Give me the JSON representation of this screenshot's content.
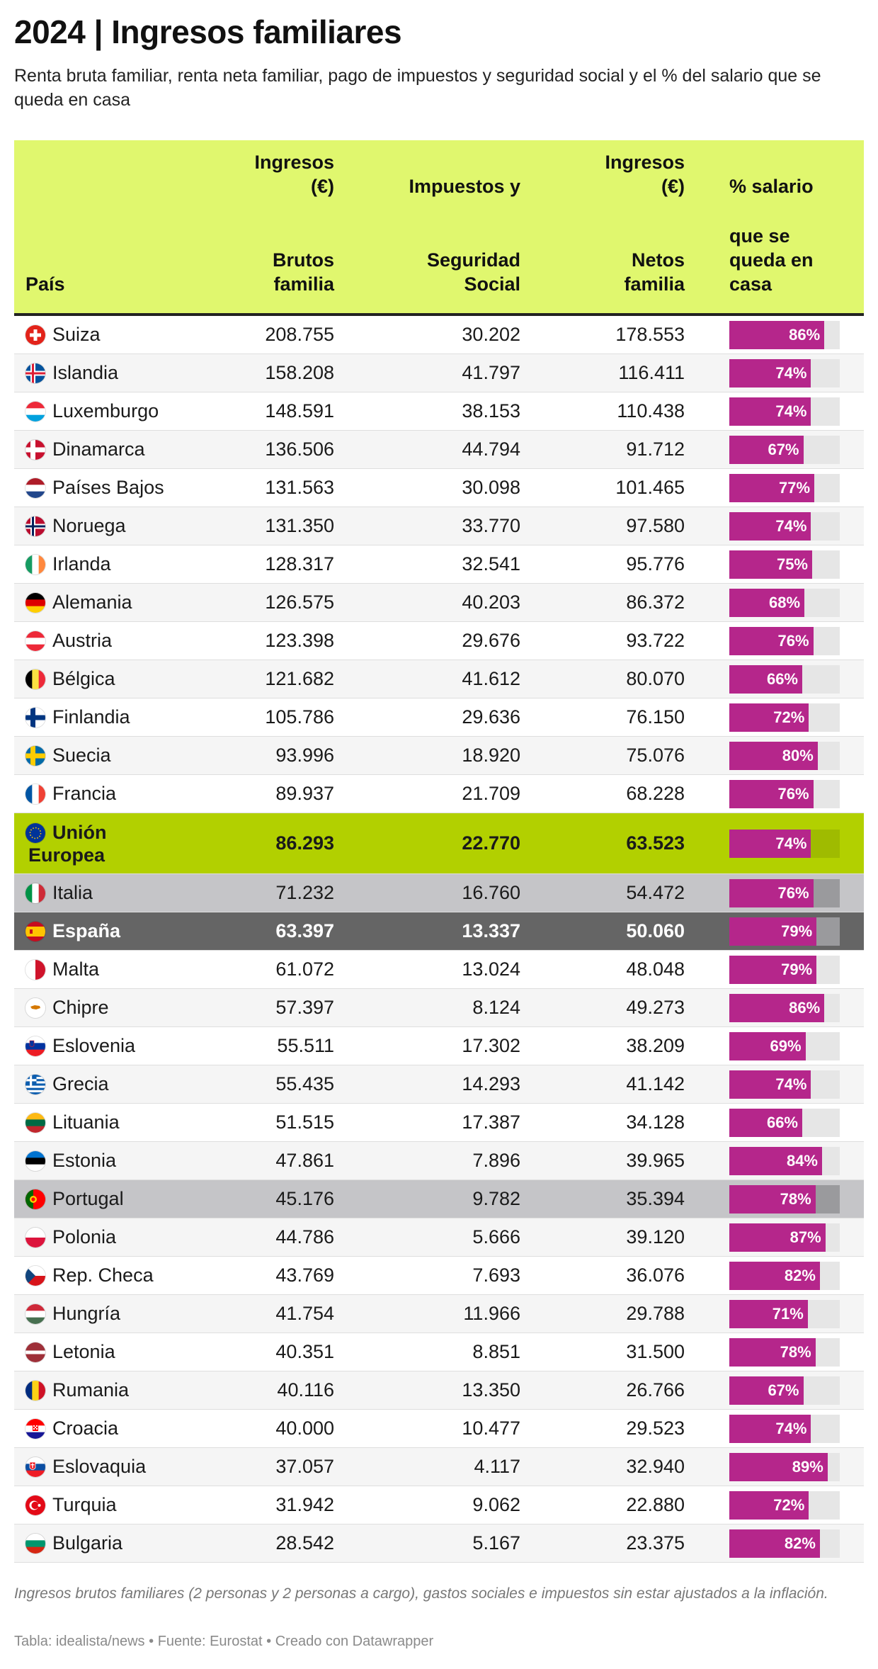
{
  "header": {
    "title": "2024 | Ingresos familiares",
    "subtitle": "Renta bruta familiar, renta neta familiar, pago de impuestos y seguridad social y el % del salario que se queda en casa"
  },
  "columns": {
    "country": "País",
    "gross_top": [
      "Ingresos",
      "(€)"
    ],
    "gross_bottom": [
      "Brutos",
      "familia"
    ],
    "tax_top": [
      "Impuestos y"
    ],
    "tax_bottom": [
      "Seguridad",
      "Social"
    ],
    "net_top": [
      "Ingresos",
      "(€)"
    ],
    "net_bottom": [
      "Netos",
      "familia"
    ],
    "pct_top": [
      "% salario"
    ],
    "pct_bottom": [
      "que se",
      "queda en",
      "casa"
    ]
  },
  "chart_data": {
    "type": "table",
    "columns": [
      "País",
      "Ingresos (€) Brutos familia",
      "Impuestos y Seguridad Social",
      "Ingresos (€) Netos familia",
      "% salario que se queda en casa"
    ],
    "bar_max_percent": 100,
    "rows": [
      {
        "country": "Suiza",
        "flag": "ch",
        "gross": "208.755",
        "tax": "30.202",
        "net": "178.553",
        "pct": 86,
        "pct_label": "86%"
      },
      {
        "country": "Islandia",
        "flag": "is",
        "gross": "158.208",
        "tax": "41.797",
        "net": "116.411",
        "pct": 74,
        "pct_label": "74%"
      },
      {
        "country": "Luxemburgo",
        "flag": "lu",
        "gross": "148.591",
        "tax": "38.153",
        "net": "110.438",
        "pct": 74,
        "pct_label": "74%"
      },
      {
        "country": "Dinamarca",
        "flag": "dk",
        "gross": "136.506",
        "tax": "44.794",
        "net": "91.712",
        "pct": 67,
        "pct_label": "67%"
      },
      {
        "country": "Países Bajos",
        "flag": "nl",
        "gross": "131.563",
        "tax": "30.098",
        "net": "101.465",
        "pct": 77,
        "pct_label": "77%"
      },
      {
        "country": "Noruega",
        "flag": "no",
        "gross": "131.350",
        "tax": "33.770",
        "net": "97.580",
        "pct": 74,
        "pct_label": "74%"
      },
      {
        "country": "Irlanda",
        "flag": "ie",
        "gross": "128.317",
        "tax": "32.541",
        "net": "95.776",
        "pct": 75,
        "pct_label": "75%"
      },
      {
        "country": "Alemania",
        "flag": "de",
        "gross": "126.575",
        "tax": "40.203",
        "net": "86.372",
        "pct": 68,
        "pct_label": "68%"
      },
      {
        "country": "Austria",
        "flag": "at",
        "gross": "123.398",
        "tax": "29.676",
        "net": "93.722",
        "pct": 76,
        "pct_label": "76%"
      },
      {
        "country": "Bélgica",
        "flag": "be",
        "gross": "121.682",
        "tax": "41.612",
        "net": "80.070",
        "pct": 66,
        "pct_label": "66%"
      },
      {
        "country": "Finlandia",
        "flag": "fi",
        "gross": "105.786",
        "tax": "29.636",
        "net": "76.150",
        "pct": 72,
        "pct_label": "72%"
      },
      {
        "country": "Suecia",
        "flag": "se",
        "gross": "93.996",
        "tax": "18.920",
        "net": "75.076",
        "pct": 80,
        "pct_label": "80%"
      },
      {
        "country": "Francia",
        "flag": "fr",
        "gross": "89.937",
        "tax": "21.709",
        "net": "68.228",
        "pct": 76,
        "pct_label": "76%"
      },
      {
        "country": "Unión Europea",
        "country_lines": [
          "Unión",
          "Europea"
        ],
        "flag": "eu",
        "highlight": "eu",
        "gross": "86.293",
        "tax": "22.770",
        "net": "63.523",
        "pct": 74,
        "pct_label": "74%"
      },
      {
        "country": "Italia",
        "flag": "it",
        "highlight": "light",
        "gross": "71.232",
        "tax": "16.760",
        "net": "54.472",
        "pct": 76,
        "pct_label": "76%"
      },
      {
        "country": "España",
        "flag": "es",
        "highlight": "dark",
        "gross": "63.397",
        "tax": "13.337",
        "net": "50.060",
        "pct": 79,
        "pct_label": "79%"
      },
      {
        "country": "Malta",
        "flag": "mt",
        "gross": "61.072",
        "tax": "13.024",
        "net": "48.048",
        "pct": 79,
        "pct_label": "79%"
      },
      {
        "country": "Chipre",
        "flag": "cy",
        "gross": "57.397",
        "tax": "8.124",
        "net": "49.273",
        "pct": 86,
        "pct_label": "86%"
      },
      {
        "country": "Eslovenia",
        "flag": "si",
        "gross": "55.511",
        "tax": "17.302",
        "net": "38.209",
        "pct": 69,
        "pct_label": "69%"
      },
      {
        "country": "Grecia",
        "flag": "gr",
        "gross": "55.435",
        "tax": "14.293",
        "net": "41.142",
        "pct": 74,
        "pct_label": "74%"
      },
      {
        "country": "Lituania",
        "flag": "lt",
        "gross": "51.515",
        "tax": "17.387",
        "net": "34.128",
        "pct": 66,
        "pct_label": "66%"
      },
      {
        "country": "Estonia",
        "flag": "ee",
        "gross": "47.861",
        "tax": "7.896",
        "net": "39.965",
        "pct": 84,
        "pct_label": "84%"
      },
      {
        "country": "Portugal",
        "flag": "pt",
        "highlight": "light",
        "gross": "45.176",
        "tax": "9.782",
        "net": "35.394",
        "pct": 78,
        "pct_label": "78%"
      },
      {
        "country": "Polonia",
        "flag": "pl",
        "gross": "44.786",
        "tax": "5.666",
        "net": "39.120",
        "pct": 87,
        "pct_label": "87%"
      },
      {
        "country": "Rep. Checa",
        "flag": "cz",
        "gross": "43.769",
        "tax": "7.693",
        "net": "36.076",
        "pct": 82,
        "pct_label": "82%"
      },
      {
        "country": "Hungría",
        "flag": "hu",
        "gross": "41.754",
        "tax": "11.966",
        "net": "29.788",
        "pct": 71,
        "pct_label": "71%"
      },
      {
        "country": "Letonia",
        "flag": "lv",
        "gross": "40.351",
        "tax": "8.851",
        "net": "31.500",
        "pct": 78,
        "pct_label": "78%"
      },
      {
        "country": "Rumania",
        "flag": "ro",
        "gross": "40.116",
        "tax": "13.350",
        "net": "26.766",
        "pct": 67,
        "pct_label": "67%"
      },
      {
        "country": "Croacia",
        "flag": "hr",
        "gross": "40.000",
        "tax": "10.477",
        "net": "29.523",
        "pct": 74,
        "pct_label": "74%"
      },
      {
        "country": "Eslovaquia",
        "flag": "sk",
        "gross": "37.057",
        "tax": "4.117",
        "net": "32.940",
        "pct": 89,
        "pct_label": "89%"
      },
      {
        "country": "Turquia",
        "flag": "tr",
        "gross": "31.942",
        "tax": "9.062",
        "net": "22.880",
        "pct": 72,
        "pct_label": "72%"
      },
      {
        "country": "Bulgaria",
        "flag": "bg",
        "gross": "28.542",
        "tax": "5.167",
        "net": "23.375",
        "pct": 82,
        "pct_label": "82%"
      }
    ]
  },
  "colors": {
    "header_bg": "#e0f76e",
    "eu_row": "#b2d000",
    "highlight_light": "#c5c5c8",
    "highlight_dark": "#656565",
    "bar": "#b5268b",
    "bar_track": "#e6e6e6"
  },
  "footer": {
    "note": "Ingresos brutos familiares (2 personas y 2 personas a cargo), gastos sociales e impuestos sin estar ajustados a la inflación.",
    "source_label": "Tabla: idealista/news",
    "source": "Fuente: Eurostat",
    "credit": "Creado con Datawrapper",
    "separator": "•"
  }
}
